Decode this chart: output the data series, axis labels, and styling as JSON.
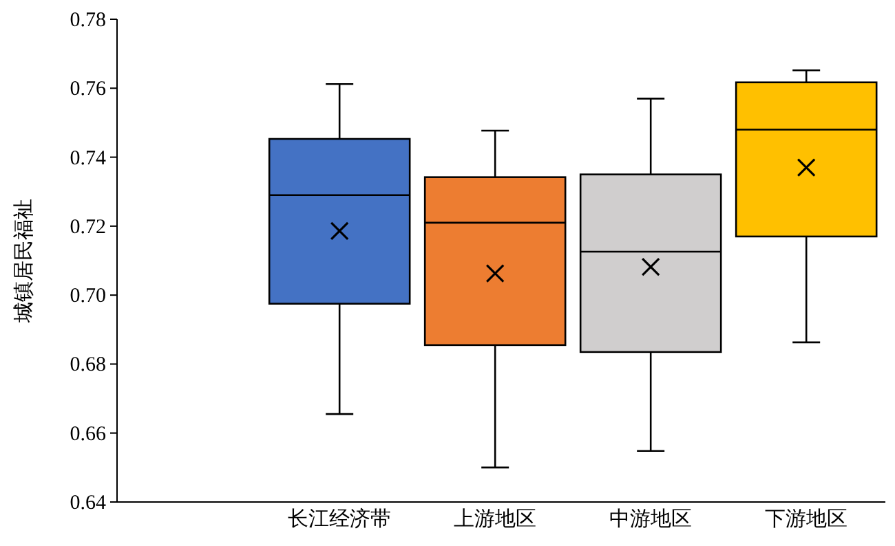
{
  "chart_data": {
    "type": "box",
    "ylabel": "城镇居民福祉",
    "categories": [
      "长江经济带",
      "上游地区",
      "中游地区",
      "下游地区"
    ],
    "colors": [
      "#4472c4",
      "#ed7d31",
      "#d0cece",
      "#ffc000"
    ],
    "boxes": [
      {
        "low": 0.6655,
        "q1": 0.6975,
        "median": 0.729,
        "q3": 0.7453,
        "high": 0.7612,
        "mean": 0.7186
      },
      {
        "low": 0.65,
        "q1": 0.6855,
        "median": 0.721,
        "q3": 0.7342,
        "high": 0.7477,
        "mean": 0.7063
      },
      {
        "low": 0.6548,
        "q1": 0.6835,
        "median": 0.7126,
        "q3": 0.735,
        "high": 0.757,
        "mean": 0.7082
      },
      {
        "low": 0.6863,
        "q1": 0.717,
        "median": 0.748,
        "q3": 0.7617,
        "high": 0.7652,
        "mean": 0.737
      }
    ],
    "marker": "cross",
    "ylim": [
      0.64,
      0.78
    ],
    "yticks": [
      {
        "value": 0.64,
        "label": "0.64"
      },
      {
        "value": 0.66,
        "label": "0.66"
      },
      {
        "value": 0.68,
        "label": "0.68"
      },
      {
        "value": 0.7,
        "label": "0.70"
      },
      {
        "value": 0.72,
        "label": "0.72"
      },
      {
        "value": 0.74,
        "label": "0.74"
      },
      {
        "value": 0.76,
        "label": "0.76"
      },
      {
        "value": 0.78,
        "label": "0.78"
      }
    ]
  }
}
